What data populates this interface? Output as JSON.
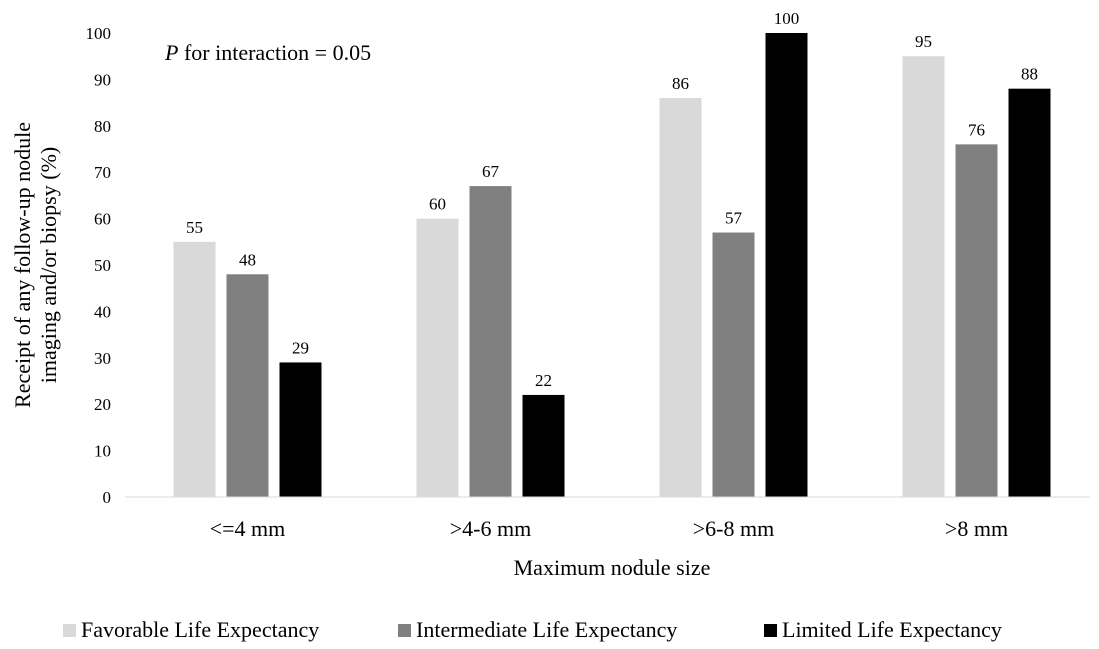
{
  "chart_data": {
    "type": "bar",
    "categories": [
      "<=4 mm",
      ">4-6 mm",
      ">6-8 mm",
      ">8 mm"
    ],
    "series": [
      {
        "name": "Favorable Life Expectancy",
        "values": [
          55,
          60,
          86,
          95
        ],
        "color": "#d9d9d9"
      },
      {
        "name": "Intermediate Life Expectancy",
        "values": [
          48,
          67,
          57,
          76
        ],
        "color": "#808080"
      },
      {
        "name": "Limited Life Expectancy",
        "values": [
          29,
          22,
          100,
          88
        ],
        "color": "#000000"
      }
    ],
    "xlabel": "Maximum nodule size",
    "ylabel_line1": "Receipt of any follow-up nodule",
    "ylabel_line2": "imaging and/or biopsy (%)",
    "ylim": [
      0,
      100
    ],
    "yticks": [
      0,
      10,
      20,
      30,
      40,
      50,
      60,
      70,
      80,
      90,
      100
    ],
    "annotation": {
      "italic": "P",
      "text": " for interaction = 0.05"
    },
    "grid": false,
    "legend_position": "bottom",
    "data_labels": true
  }
}
